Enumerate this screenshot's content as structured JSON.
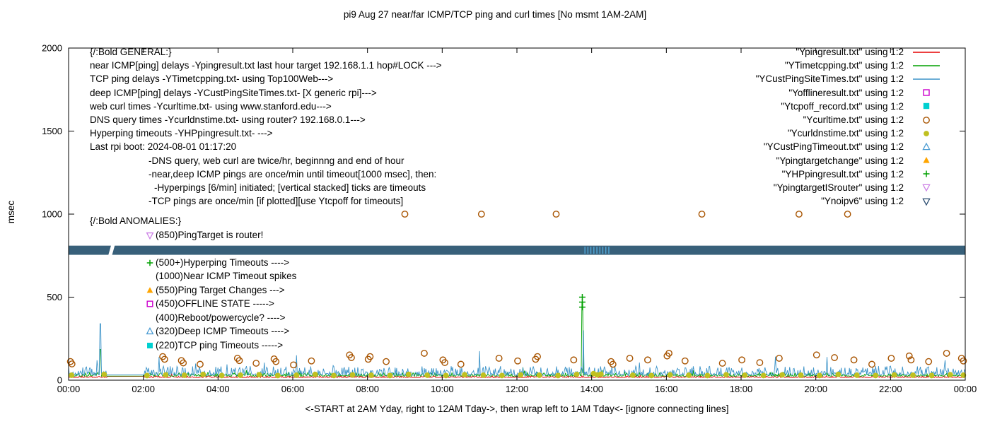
{
  "title": "pi9 Aug 27  near/far ICMP/TCP ping and curl times [No msmt 1AM-2AM]",
  "ylabel": "msec",
  "xlabel": "<-START at 2AM Yday, right to 12AM Tday->, then wrap left to 1AM Tday<- [ignore connecting lines]",
  "chart_data": {
    "type": "line",
    "x_hours": [
      0,
      24
    ],
    "ylim": [
      0,
      2000
    ],
    "y_ticks": [
      0,
      500,
      1000,
      1500,
      2000
    ],
    "x_tick_labels": [
      "00:00",
      "02:00",
      "04:00",
      "06:00",
      "08:00",
      "10:00",
      "12:00",
      "14:00",
      "16:00",
      "18:00",
      "20:00",
      "22:00",
      "00:00"
    ],
    "gap_hours": [
      1.04,
      2.0
    ],
    "grid": false,
    "legend_position": "top-right-inside",
    "legend": [
      {
        "label": "\"Ypingresult.txt\" using 1:2",
        "glyph": "line",
        "color": "#e60000"
      },
      {
        "label": "\"YTimetcpping.txt\" using 1:2",
        "glyph": "line",
        "color": "#00a000"
      },
      {
        "label": "\"YCustPingSiteTimes.txt\" using 1:2",
        "glyph": "line",
        "color": "#3d94c9"
      },
      {
        "label": "\"Yofflineresult.txt\" using 1:2",
        "glyph": "square-open",
        "color": "#cc00cc"
      },
      {
        "label": "\"Ytcpoff_record.txt\" using 1:2",
        "glyph": "square-filled",
        "color": "#00d0d0"
      },
      {
        "label": "\"Ycurltime.txt\" using 1:2",
        "glyph": "circle-open",
        "color": "#a85400"
      },
      {
        "label": "\"Ycurldnstime.txt\" using 1:2",
        "glyph": "circle-filled",
        "color": "#c0c020"
      },
      {
        "label": "\"YCustPingTimeout.txt\" using 1:2",
        "glyph": "triangle-up-open",
        "color": "#4b9cd3"
      },
      {
        "label": "\"Ypingtargetchange\" using 1:2",
        "glyph": "triangle-up-filled",
        "color": "#ffa500"
      },
      {
        "label": "\"YHPpingresult.txt\" using 1:2",
        "glyph": "plus",
        "color": "#00a000"
      },
      {
        "label": "\"YpingtargetISrouter\" using 1:2",
        "glyph": "triangle-down-open",
        "color": "#cc80e6"
      },
      {
        "label": "\"Ynoipv6\" using 1:2",
        "glyph": "triangle-down-open",
        "color": "#27496d"
      }
    ],
    "annotations": {
      "general": {
        "x": 127,
        "top": 64,
        "lines": [
          {
            "indent": 0,
            "text": "{/:Bold GENERAL:}"
          },
          {
            "indent": 0,
            "text": "near ICMP[ping] delays -Ypingresult.txt last hour target 192.168.1.1 hop#LOCK --->"
          },
          {
            "indent": 0,
            "text": "TCP ping delays -YTimetcpping.txt- using Top100Web--->"
          },
          {
            "indent": 0,
            "text": "deep ICMP[ping] delays -YCustPingSiteTimes.txt- [X generic rpi]--->"
          },
          {
            "indent": 0,
            "text": "web curl times -Ycurltime.txt- using www.stanford.edu--->"
          },
          {
            "indent": 0,
            "text": "DNS query times -Ycurldnstime.txt- using router? 192.168.0.1--->"
          },
          {
            "indent": 0,
            "text": "Hyperping timeouts -YHPpingresult.txt- --->"
          },
          {
            "indent": 0,
            "text": "Last rpi boot: 2024-08-01 01:17:20"
          },
          {
            "indent": 1,
            "text": "-DNS query, web curl are twice/hr, beginnng and end of hour"
          },
          {
            "indent": 1,
            "text": "-near,deep ICMP pings are once/min until timeout[1000 msec], then:"
          },
          {
            "indent": 2,
            "text": "-Hyperpings [6/min] initiated; [vertical stacked] ticks are timeouts"
          },
          {
            "indent": 1,
            "text": "-TCP pings are once/min [if plotted][use Ytcpoff for timeouts]"
          }
        ]
      },
      "anomalies": {
        "x": 127,
        "top": 303,
        "header": "{/:Bold ANOMALIES:}",
        "items": [
          {
            "marker": "triangle-down-open",
            "color": "#cc80e6",
            "text": "(850)PingTarget is router!"
          },
          {
            "marker": "",
            "color": "",
            "text": ""
          },
          {
            "marker": "plus",
            "color": "#00a000",
            "text": "(500+)Hyperping Timeouts ---->"
          },
          {
            "marker": "",
            "color": "",
            "text": "(1000)Near ICMP Timeout spikes"
          },
          {
            "marker": "triangle-up-filled",
            "color": "#ffa500",
            "text": "(550)Ping Target Changes --->"
          },
          {
            "marker": "square-open",
            "color": "#cc00cc",
            "text": "(450)OFFLINE STATE ----->"
          },
          {
            "marker": "",
            "color": "",
            "text": "(400)Reboot/powercycle? ---->"
          },
          {
            "marker": "triangle-up-open",
            "color": "#4b9cd3",
            "text": "(320)Deep ICMP Timeouts ---->"
          },
          {
            "marker": "square-filled",
            "color": "#00d0d0",
            "text": "(220)TCP ping Timeouts ----->"
          }
        ]
      }
    },
    "band": {
      "y0": 755,
      "y1": 810,
      "color": "#38607a",
      "gap": [
        1.06,
        1.24
      ],
      "tick_color": "#56b4e9",
      "tick_xs": [
        13.82,
        13.9,
        13.98,
        14.06,
        14.14,
        14.22,
        14.3,
        14.38,
        14.46
      ]
    },
    "line_series": [
      {
        "name": "Ypingresult",
        "color": "#e60000",
        "base": 16,
        "jitter": 10,
        "seed": 101,
        "spikes": []
      },
      {
        "name": "YTimetcpping",
        "color": "#00a000",
        "base": 24,
        "jitter": 22,
        "seed": 202,
        "spikes": [
          [
            0.85,
            185
          ],
          [
            13.75,
            470
          ]
        ]
      },
      {
        "name": "YCustPingSiteTimes",
        "color": "#3d94c9",
        "base": 30,
        "jitter": 55,
        "seed": 303,
        "spikes": [
          [
            0.85,
            340
          ],
          [
            6.1,
            150
          ],
          [
            11.0,
            175
          ],
          [
            13.78,
            300
          ],
          [
            20.3,
            140
          ]
        ]
      }
    ],
    "scatter_series": [
      {
        "name": "Ycurltime",
        "marker": "circle-open",
        "color": "#a85400",
        "points": [
          [
            0.05,
            112
          ],
          [
            0.09,
            98
          ],
          [
            2.52,
            142
          ],
          [
            2.57,
            126
          ],
          [
            3.02,
            118
          ],
          [
            3.07,
            104
          ],
          [
            3.52,
            96
          ],
          [
            4.52,
            132
          ],
          [
            4.57,
            118
          ],
          [
            5.02,
            102
          ],
          [
            5.5,
            128
          ],
          [
            5.55,
            112
          ],
          [
            6.02,
            92
          ],
          [
            6.5,
            116
          ],
          [
            7.52,
            152
          ],
          [
            7.57,
            136
          ],
          [
            8.02,
            126
          ],
          [
            8.07,
            142
          ],
          [
            8.5,
            112
          ],
          [
            9.0,
            1000
          ],
          [
            9.52,
            162
          ],
          [
            10.02,
            122
          ],
          [
            10.07,
            106
          ],
          [
            10.5,
            96
          ],
          [
            11.05,
            1000
          ],
          [
            11.52,
            132
          ],
          [
            12.02,
            116
          ],
          [
            12.5,
            126
          ],
          [
            12.55,
            142
          ],
          [
            13.05,
            1000
          ],
          [
            13.52,
            122
          ],
          [
            14.52,
            112
          ],
          [
            14.57,
            96
          ],
          [
            15.02,
            132
          ],
          [
            15.5,
            122
          ],
          [
            16.02,
            146
          ],
          [
            16.07,
            162
          ],
          [
            16.5,
            116
          ],
          [
            16.95,
            1000
          ],
          [
            17.5,
            102
          ],
          [
            18.02,
            122
          ],
          [
            18.5,
            106
          ],
          [
            19.02,
            132
          ],
          [
            19.55,
            1000
          ],
          [
            20.02,
            152
          ],
          [
            20.5,
            136
          ],
          [
            20.85,
            1000
          ],
          [
            21.02,
            122
          ],
          [
            21.5,
            96
          ],
          [
            22.02,
            132
          ],
          [
            22.5,
            146
          ],
          [
            22.55,
            122
          ],
          [
            23.02,
            112
          ],
          [
            23.5,
            162
          ],
          [
            23.9,
            132
          ],
          [
            23.95,
            116
          ]
        ]
      },
      {
        "name": "Ycurldnstime",
        "marker": "circle-filled",
        "color": "#c0c020",
        "points": [
          [
            0.08,
            30
          ],
          [
            0.95,
            35
          ],
          [
            2.1,
            28
          ],
          [
            2.6,
            32
          ],
          [
            3.1,
            30
          ],
          [
            3.6,
            35
          ],
          [
            4.1,
            28
          ],
          [
            4.6,
            30
          ],
          [
            5.1,
            33
          ],
          [
            5.6,
            28
          ],
          [
            6.1,
            30
          ],
          [
            6.6,
            35
          ],
          [
            7.1,
            28
          ],
          [
            7.6,
            32
          ],
          [
            8.1,
            30
          ],
          [
            8.6,
            28
          ],
          [
            9.1,
            35
          ],
          [
            9.6,
            30
          ],
          [
            10.1,
            28
          ],
          [
            10.6,
            33
          ],
          [
            11.1,
            30
          ],
          [
            11.6,
            28
          ],
          [
            12.1,
            32
          ],
          [
            12.6,
            30
          ],
          [
            13.1,
            28
          ],
          [
            13.6,
            35
          ],
          [
            14.05,
            40
          ],
          [
            14.15,
            32
          ],
          [
            14.25,
            36
          ],
          [
            15.1,
            30
          ],
          [
            15.6,
            28
          ],
          [
            16.1,
            32
          ],
          [
            16.6,
            30
          ],
          [
            17.1,
            28
          ],
          [
            17.6,
            33
          ],
          [
            18.1,
            30
          ],
          [
            18.6,
            28
          ],
          [
            19.1,
            32
          ],
          [
            19.6,
            30
          ],
          [
            20.1,
            28
          ],
          [
            20.6,
            35
          ],
          [
            21.1,
            30
          ],
          [
            21.6,
            28
          ],
          [
            22.1,
            32
          ],
          [
            22.6,
            30
          ],
          [
            23.1,
            28
          ],
          [
            23.6,
            33
          ],
          [
            23.95,
            30
          ]
        ]
      },
      {
        "name": "YHPpingresult",
        "marker": "plus",
        "color": "#00a000",
        "points": [
          [
            13.75,
            500
          ],
          [
            13.75,
            470
          ],
          [
            13.75,
            440
          ]
        ]
      }
    ]
  }
}
